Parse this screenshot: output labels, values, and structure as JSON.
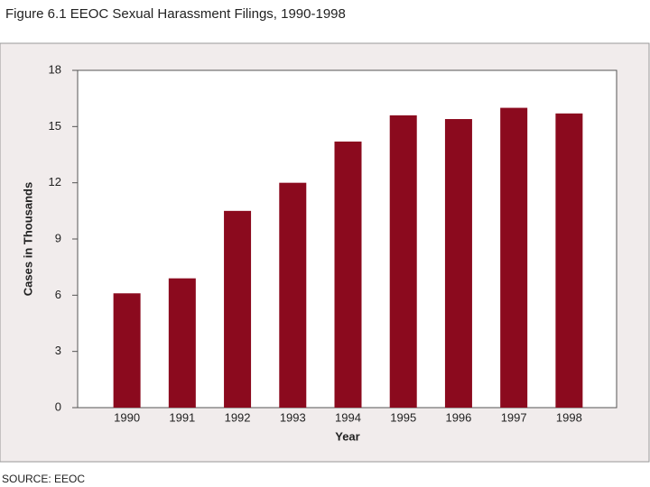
{
  "chart_data": {
    "type": "bar",
    "title": "Figure 6.1   EEOC Sexual Harassment Filings, 1990-1998",
    "xlabel": "Year",
    "ylabel": "Cases in Thousands",
    "source": "SOURCE: EEOC",
    "categories": [
      "1990",
      "1991",
      "1992",
      "1993",
      "1994",
      "1995",
      "1996",
      "1997",
      "1998"
    ],
    "values": [
      6.1,
      6.9,
      10.5,
      12.0,
      14.2,
      15.6,
      15.4,
      16.0,
      15.7
    ],
    "color": "#8b0a1e",
    "ylim": [
      0,
      18
    ],
    "yticks": [
      0,
      3,
      6,
      9,
      12,
      15,
      18
    ]
  }
}
